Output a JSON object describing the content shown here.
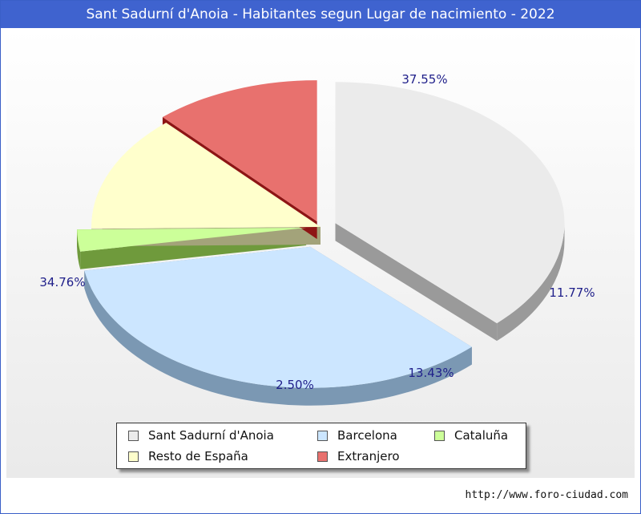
{
  "title": "Sant Sadurní d'Anoia - Habitantes segun Lugar de nacimiento - 2022",
  "footer": {
    "url": "http://www.foro-ciudad.com"
  },
  "chart_data": {
    "type": "pie",
    "title": "Sant Sadurní d'Anoia - Habitantes segun Lugar de nacimiento - 2022",
    "legend_position": "bottom",
    "slices": [
      {
        "label": "Sant Sadurní d'Anoia",
        "value": 37.55,
        "value_label": "37.55%",
        "color": "#ebebeb",
        "side_color": "#9a9a9a"
      },
      {
        "label": "Barcelona",
        "value": 34.76,
        "value_label": "34.76%",
        "color": "#cce6ff",
        "side_color": "#7b98b3"
      },
      {
        "label": "Cataluña",
        "value": 2.5,
        "value_label": "2.50%",
        "color": "#ccff99",
        "side_color": "#6f9a3c"
      },
      {
        "label": "Resto de España",
        "value": 13.43,
        "value_label": "13.43%",
        "color": "#ffffcc",
        "side_color": "#a3a37a"
      },
      {
        "label": "Extranjero",
        "value": 11.77,
        "value_label": "11.77%",
        "color": "#e8716e",
        "side_color": "#8e1515"
      }
    ]
  }
}
